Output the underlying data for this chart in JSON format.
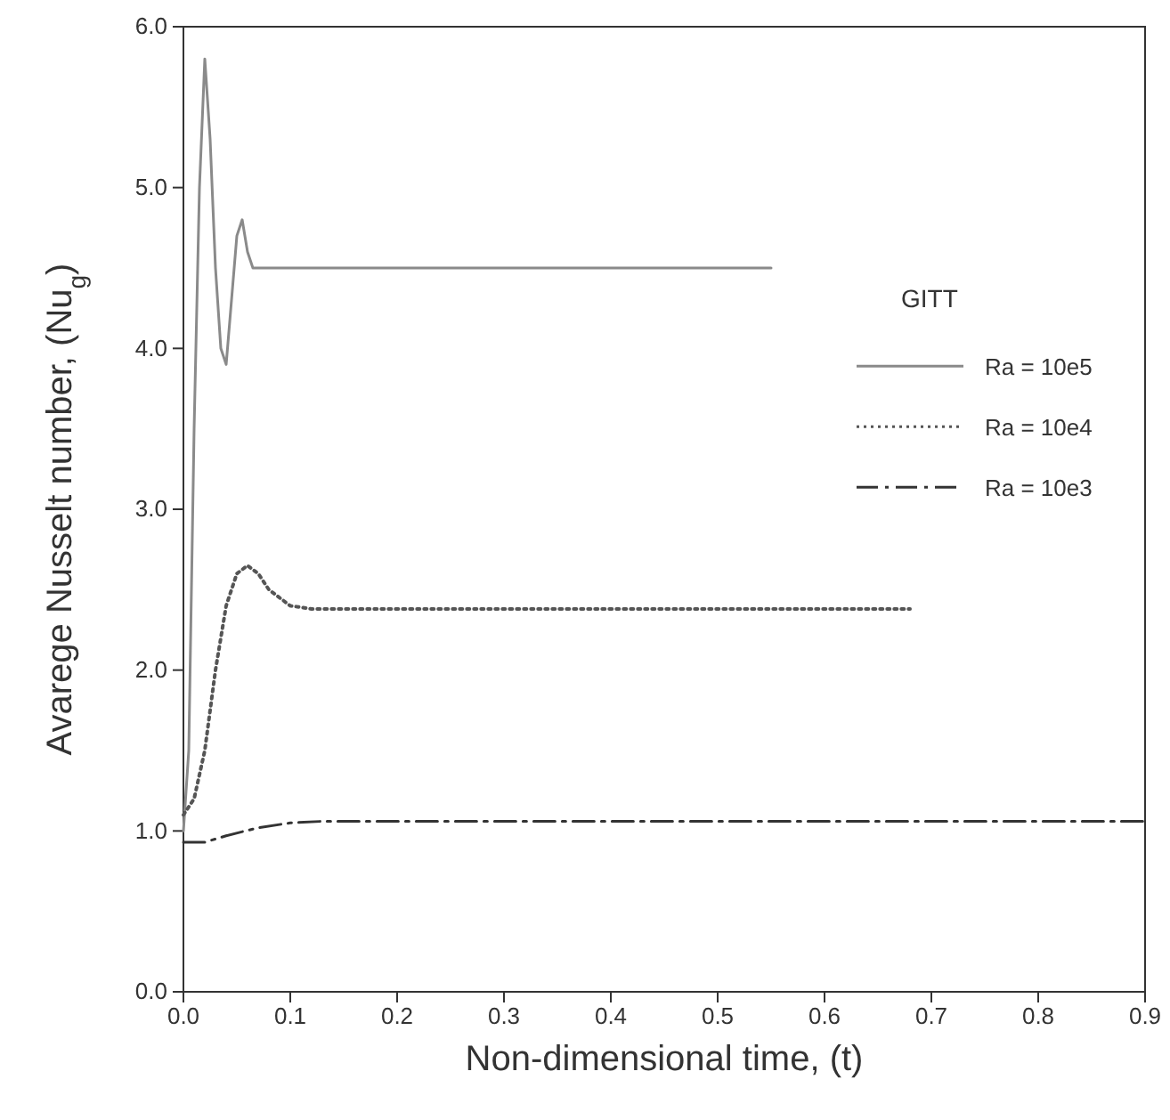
{
  "chart_data": {
    "type": "line",
    "xlabel": "Non-dimensional time, (t)",
    "ylabel": "Avarege Nusselt number, (Nu$_{g}$)",
    "legend_title": "GITT",
    "legend": "right",
    "grid": false,
    "xlim": [
      0,
      0.9
    ],
    "ylim": [
      0,
      6
    ],
    "xticks": [
      {
        "value": 0,
        "label": "0.0"
      },
      {
        "value": 0.1,
        "label": "0.1"
      },
      {
        "value": 0.2,
        "label": "0.2"
      },
      {
        "value": 0.3,
        "label": "0.3"
      },
      {
        "value": 0.4,
        "label": "0.4"
      },
      {
        "value": 0.5,
        "label": "0.5"
      },
      {
        "value": 0.6,
        "label": "0.6"
      },
      {
        "value": 0.7,
        "label": "0.7"
      },
      {
        "value": 0.8,
        "label": "0.8"
      },
      {
        "value": 0.9,
        "label": "0.9"
      }
    ],
    "yticks": [
      {
        "value": 0,
        "label": "0.0"
      },
      {
        "value": 1,
        "label": "1.0"
      },
      {
        "value": 2,
        "label": "2.0"
      },
      {
        "value": 3,
        "label": "3.0"
      },
      {
        "value": 4,
        "label": "4.0"
      },
      {
        "value": 5,
        "label": "5.0"
      },
      {
        "value": 6,
        "label": "6.0"
      }
    ],
    "series": [
      {
        "name": "Ra = 10e5",
        "color": "#8a8a8a",
        "line_style": "solid",
        "x": [
          0,
          0.005,
          0.01,
          0.015,
          0.02,
          0.025,
          0.03,
          0.035,
          0.04,
          0.045,
          0.05,
          0.055,
          0.06,
          0.065,
          0.07,
          0.1,
          0.2,
          0.3,
          0.4,
          0.55
        ],
        "values": [
          1.0,
          1.5,
          3.5,
          5.0,
          5.8,
          5.3,
          4.5,
          4.0,
          3.9,
          4.3,
          4.7,
          4.8,
          4.6,
          4.5,
          4.5,
          4.5,
          4.5,
          4.5,
          4.5,
          4.5
        ]
      },
      {
        "name": "Ra = 10e4",
        "color": "#555555",
        "line_style": "dotted",
        "x": [
          0,
          0.01,
          0.02,
          0.03,
          0.04,
          0.05,
          0.06,
          0.07,
          0.08,
          0.1,
          0.12,
          0.2,
          0.4,
          0.6,
          0.68
        ],
        "values": [
          1.1,
          1.2,
          1.5,
          2.0,
          2.4,
          2.6,
          2.65,
          2.6,
          2.5,
          2.4,
          2.38,
          2.38,
          2.38,
          2.38,
          2.38
        ]
      },
      {
        "name": "Ra = 10e3",
        "color": "#333333",
        "line_style": "dashdot",
        "x": [
          0,
          0.02,
          0.04,
          0.07,
          0.1,
          0.13,
          0.2,
          0.4,
          0.6,
          0.9
        ],
        "values": [
          0.93,
          0.93,
          0.97,
          1.02,
          1.05,
          1.06,
          1.06,
          1.06,
          1.06,
          1.06
        ]
      }
    ]
  }
}
